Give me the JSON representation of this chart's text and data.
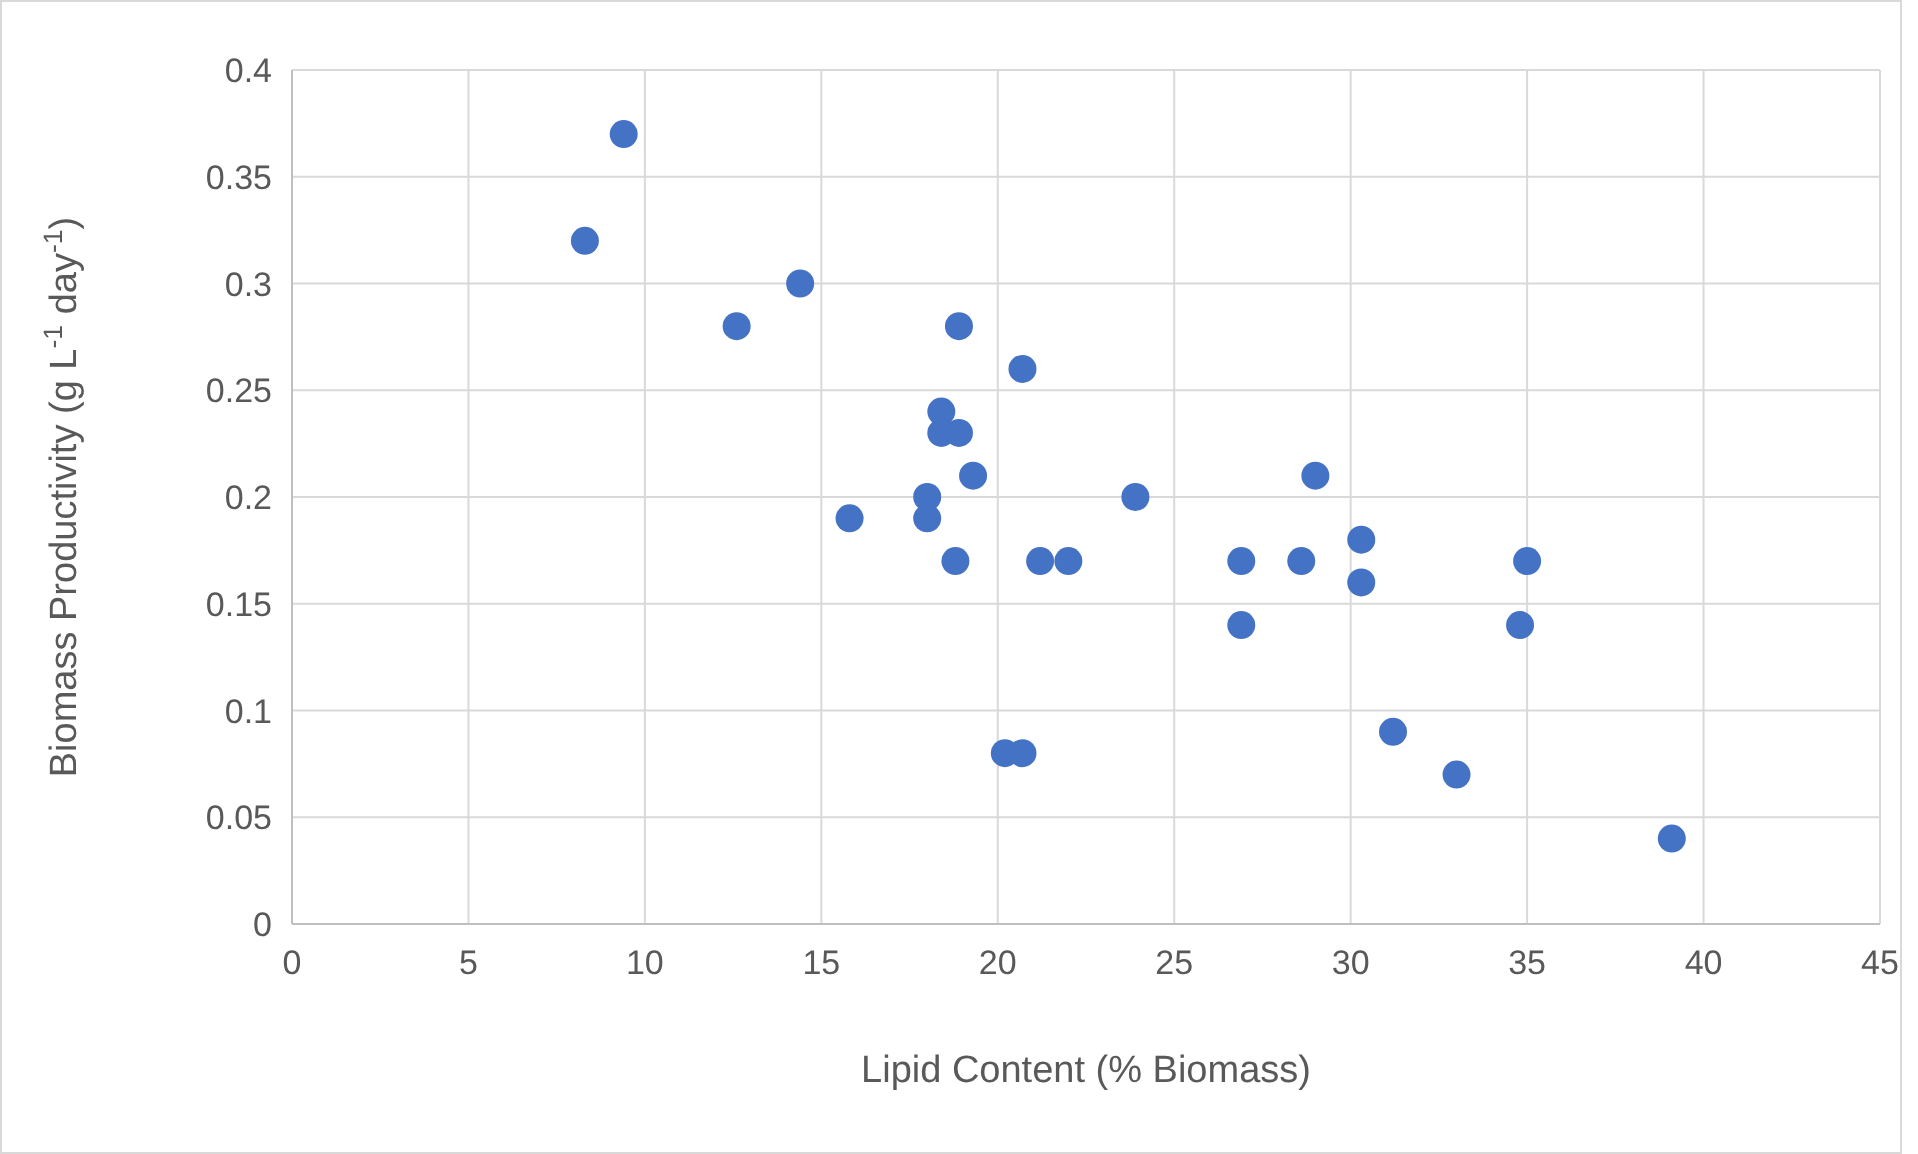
{
  "chart_data": {
    "type": "scatter",
    "xlabel": "Lipid Content (% Biomass)",
    "ylabel": "Biomass Productivity (g L$^{-1}$ day$^{-1}$)",
    "x": [
      9.4,
      8.3,
      12.6,
      14.4,
      15.8,
      18.0,
      18.0,
      18.4,
      18.4,
      18.9,
      18.9,
      18.8,
      19.3,
      20.7,
      20.2,
      20.7,
      21.2,
      22.0,
      23.9,
      26.9,
      26.9,
      28.6,
      29.0,
      30.3,
      30.3,
      31.2,
      33.0,
      34.8,
      35.0,
      39.1
    ],
    "values": [
      0.37,
      0.32,
      0.28,
      0.3,
      0.19,
      0.2,
      0.19,
      0.24,
      0.23,
      0.28,
      0.23,
      0.17,
      0.21,
      0.26,
      0.08,
      0.08,
      0.17,
      0.17,
      0.2,
      0.17,
      0.14,
      0.17,
      0.21,
      0.18,
      0.16,
      0.09,
      0.07,
      0.14,
      0.17,
      0.04
    ],
    "color": "#4472c4",
    "marker": "circle",
    "xlim": [
      0,
      45
    ],
    "xticks": [
      0,
      5,
      10,
      15,
      20,
      25,
      30,
      35,
      40,
      45
    ],
    "ylim": [
      0,
      0.4
    ],
    "yticks": [
      0,
      0.05,
      0.1,
      0.15,
      0.2,
      0.25,
      0.3,
      0.35,
      0.4
    ],
    "grid": true
  }
}
